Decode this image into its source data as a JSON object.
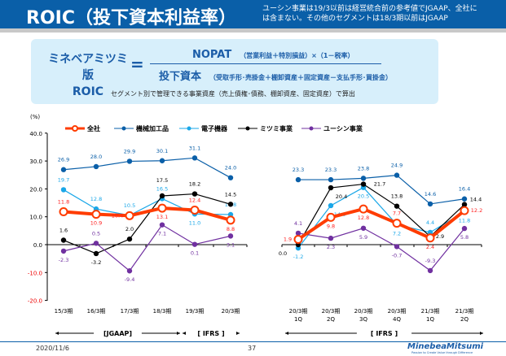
{
  "header": {
    "title": "ROIC（投下資本利益率）",
    "note": "ユーシン事業は19/3以前は経営統合前の参考値でJGAAP、全社には含まない。その他のセグメントは18/3期以前はJGAAP"
  },
  "formula": {
    "lhs1": "ミネベアミツミ版",
    "lhs2": "ROIC",
    "eq": "=",
    "num": "NOPAT",
    "num_note": "（営業利益＋特別損益）×（1－税率）",
    "den": "投下資本",
    "den_note": "（受取手形･売掛金＋棚卸資産＋固定資産－支払手形･買掛金）",
    "sub": "セグメント別で管理できる事業資産（売上債権･債務、棚卸資産、固定資産）で算出"
  },
  "chart_data": {
    "type": "line",
    "ylabel": "(%)",
    "ylim": [
      -20,
      40
    ],
    "yticks": [
      "40.0",
      "30.0",
      "20.0",
      "10.0",
      "0.0",
      "-10.0",
      "-20.0"
    ],
    "categories": [
      [
        "15/3期"
      ],
      [
        "16/3期"
      ],
      [
        "17/3期"
      ],
      [
        "18/3期"
      ],
      [
        "19/3期"
      ],
      [
        "20/3期"
      ],
      [
        "20/3期",
        "1Q"
      ],
      [
        "20/3期",
        "2Q"
      ],
      [
        "20/3期",
        "3Q"
      ],
      [
        "20/3期",
        "4Q"
      ],
      [
        "21/3期",
        "1Q"
      ],
      [
        "21/3期",
        "2Q"
      ]
    ],
    "series": [
      {
        "name": "全社",
        "color": "#ff3c00",
        "values": [
          11.8,
          10.9,
          10.4,
          13.1,
          12.4,
          8.8,
          1.9,
          9.8,
          12.8,
          7.7,
          2.4,
          12.2
        ]
      },
      {
        "name": "機械加工品",
        "color": "#0a5fa8",
        "values": [
          26.9,
          28.0,
          29.9,
          30.1,
          31.1,
          24.0,
          23.3,
          23.3,
          23.8,
          24.9,
          14.6,
          16.4
        ]
      },
      {
        "name": "電子機器",
        "color": "#1aa7e8",
        "values": [
          19.7,
          12.8,
          10.5,
          16.5,
          11.0,
          10.8,
          -1.2,
          14.0,
          20.5,
          7.2,
          4.4,
          11.8
        ]
      },
      {
        "name": "ミツミ事業",
        "color": "#000000",
        "values": [
          1.6,
          -3.2,
          2.0,
          17.5,
          18.2,
          14.5,
          0.0,
          20.4,
          21.7,
          13.8,
          2.9,
          14.4
        ]
      },
      {
        "name": "ユーシン事業",
        "color": "#7030a0",
        "values": [
          -2.3,
          0.5,
          -9.4,
          7.1,
          0.1,
          3.1,
          4.1,
          2.3,
          5.9,
          -0.7,
          -9.3,
          5.8
        ]
      }
    ],
    "periods": [
      "[JGAAP]",
      "[ IFRS ]",
      "[ IFRS ]"
    ],
    "grid": false,
    "legend": "top"
  },
  "footer": {
    "date": "2020/11/6",
    "page": "37",
    "logo": "MinebeaMitsumi",
    "tagline": "Passion to Create Value through Difference"
  }
}
